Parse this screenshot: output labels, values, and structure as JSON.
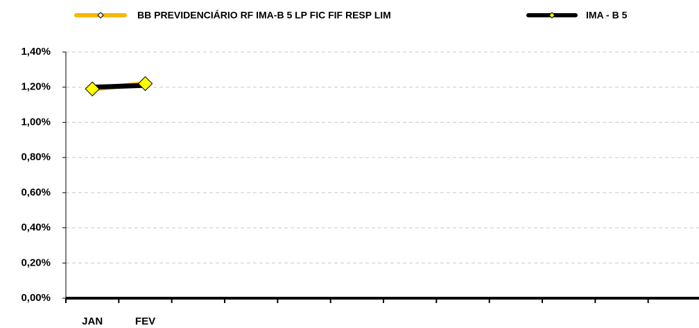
{
  "chart_data": {
    "type": "line",
    "categories": [
      "JAN",
      "FEV",
      null,
      null,
      null,
      null,
      null,
      null,
      null,
      null,
      null,
      null
    ],
    "series": [
      {
        "name": "BB PREVIDENCIÁRIO RF IMA-B 5 LP FIC FIF RESP LIM",
        "color": "#f5b800",
        "marker_color": "#ffff00",
        "values": [
          1.19,
          1.22,
          null,
          null,
          null,
          null,
          null,
          null,
          null,
          null,
          null,
          null
        ]
      },
      {
        "name": "IMA - B 5",
        "color": "#000000",
        "values": [
          1.2,
          1.21,
          null,
          null,
          null,
          null,
          null,
          null,
          null,
          null,
          null,
          null
        ]
      }
    ],
    "ylim": [
      0,
      1.4
    ],
    "yticks": [
      {
        "value": 0,
        "label": "0,00%"
      },
      {
        "value": 0.2,
        "label": "0,20%"
      },
      {
        "value": 0.4,
        "label": "0,40%"
      },
      {
        "value": 0.6,
        "label": "0,60%"
      },
      {
        "value": 0.8,
        "label": "0,80%"
      },
      {
        "value": 1.0,
        "label": "1,00%"
      },
      {
        "value": 1.2,
        "label": "1,20%"
      },
      {
        "value": 1.4,
        "label": "1,40%"
      }
    ],
    "grid": true,
    "legend": "top"
  }
}
